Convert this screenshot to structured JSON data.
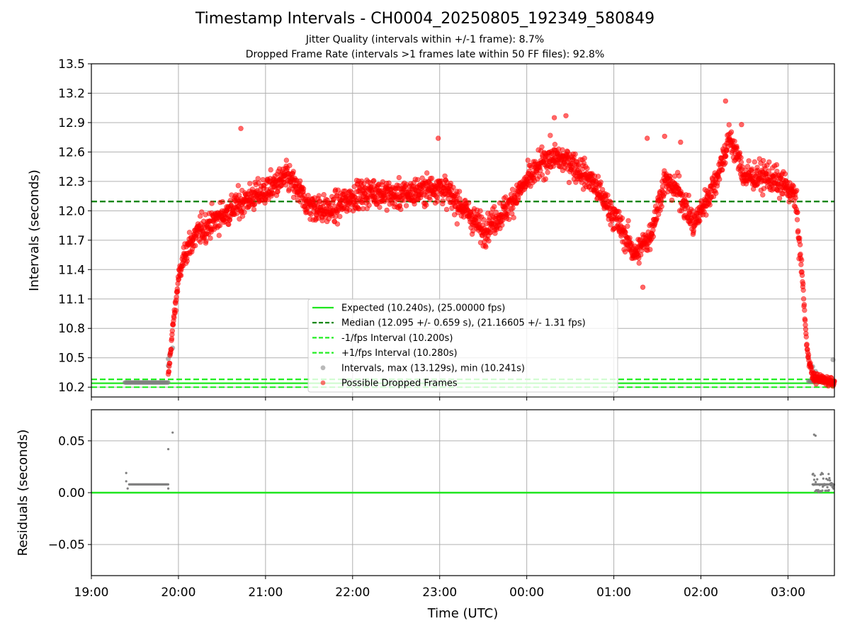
{
  "title": "Timestamp Intervals - CH0004_20250805_192349_580849",
  "subtitle_1": "Jitter Quality (intervals within +/-1 frame): 8.7%",
  "subtitle_2": "Dropped Frame Rate (intervals >1 frames late within 50 FF files): 92.8%",
  "colors": {
    "expected": "#1ee61e",
    "median": "#008000",
    "fps_band": "#22ee22",
    "intervals": "#808080",
    "dropped": "#ff0000"
  },
  "chart_data": [
    {
      "type": "scatter",
      "title": "Timestamp Intervals - CH0004_20250805_192349_580849",
      "xlabel": "",
      "ylabel": "Intervals (seconds)",
      "ylim": [
        10.1,
        13.5
      ],
      "xlim": [
        "19:00",
        "03:32"
      ],
      "x_ticks": [
        "19:00",
        "20:00",
        "21:00",
        "22:00",
        "23:00",
        "00:00",
        "01:00",
        "02:00",
        "03:00"
      ],
      "y_ticks": [
        "10.2",
        "10.5",
        "10.8",
        "11.1",
        "11.4",
        "11.7",
        "12.0",
        "12.3",
        "12.6",
        "12.9",
        "13.2",
        "13.5"
      ],
      "grid": true,
      "legend_position": "lower center",
      "legend": [
        "Expected (10.240s), (25.00000 fps)",
        "Median (12.095 +/- 0.659 s), (21.16605 +/- 1.31 fps)",
        "-1/fps Interval (10.200s)",
        "+1/fps Interval (10.280s)",
        "Intervals, max (13.129s), min (10.241s)",
        "Possible Dropped Frames"
      ],
      "reference_lines": {
        "expected": 10.24,
        "median": 12.095,
        "minus_1_fps": 10.2,
        "plus_1_fps": 10.28
      },
      "intervals_stats": {
        "max": 13.129,
        "min": 10.241
      },
      "series": [
        {
          "name": "Intervals, max (13.129s), min (10.241s)",
          "segments": [
            {
              "x_start": "19:23",
              "x_end": "19:53",
              "y": 10.248
            },
            {
              "x_start": "03:14",
              "x_end": "03:32",
              "y": 10.26
            }
          ],
          "points": [
            {
              "x": "19:53",
              "y": 10.42
            },
            {
              "x": "19:53",
              "y": 10.49
            },
            {
              "x": "19:54",
              "y": 10.53
            },
            {
              "x": "19:56",
              "y": 10.6
            },
            {
              "x": "03:17",
              "y": 10.41
            },
            {
              "x": "03:19",
              "y": 10.36
            },
            {
              "x": "03:31",
              "y": 10.48
            }
          ]
        },
        {
          "name": "Possible Dropped Frames",
          "profile": [
            {
              "x": "19:53",
              "y": 10.3
            },
            {
              "x": "19:56",
              "y": 10.8
            },
            {
              "x": "20:00",
              "y": 11.3
            },
            {
              "x": "20:05",
              "y": 11.6
            },
            {
              "x": "20:15",
              "y": 11.8
            },
            {
              "x": "20:30",
              "y": 11.95
            },
            {
              "x": "20:45",
              "y": 12.1
            },
            {
              "x": "21:00",
              "y": 12.2
            },
            {
              "x": "21:15",
              "y": 12.35
            },
            {
              "x": "21:30",
              "y": 12.05
            },
            {
              "x": "21:45",
              "y": 12.0
            },
            {
              "x": "22:00",
              "y": 12.15
            },
            {
              "x": "22:15",
              "y": 12.2
            },
            {
              "x": "22:30",
              "y": 12.15
            },
            {
              "x": "22:45",
              "y": 12.2
            },
            {
              "x": "23:00",
              "y": 12.25
            },
            {
              "x": "23:15",
              "y": 12.05
            },
            {
              "x": "23:30",
              "y": 11.8
            },
            {
              "x": "23:45",
              "y": 12.0
            },
            {
              "x": "00:00",
              "y": 12.3
            },
            {
              "x": "00:15",
              "y": 12.55
            },
            {
              "x": "00:30",
              "y": 12.5
            },
            {
              "x": "00:45",
              "y": 12.3
            },
            {
              "x": "01:00",
              "y": 11.95
            },
            {
              "x": "01:15",
              "y": 11.55
            },
            {
              "x": "01:25",
              "y": 11.75
            },
            {
              "x": "01:35",
              "y": 12.3
            },
            {
              "x": "01:45",
              "y": 12.2
            },
            {
              "x": "01:55",
              "y": 11.85
            },
            {
              "x": "02:10",
              "y": 12.3
            },
            {
              "x": "02:20",
              "y": 12.75
            },
            {
              "x": "02:30",
              "y": 12.35
            },
            {
              "x": "02:45",
              "y": 12.35
            },
            {
              "x": "02:58",
              "y": 12.25
            },
            {
              "x": "03:05",
              "y": 12.15
            },
            {
              "x": "03:10",
              "y": 11.3
            },
            {
              "x": "03:13",
              "y": 10.6
            },
            {
              "x": "03:17",
              "y": 10.3
            },
            {
              "x": "03:32",
              "y": 10.25
            }
          ],
          "outliers": [
            {
              "x": "20:43",
              "y": 12.84
            },
            {
              "x": "22:59",
              "y": 12.74
            },
            {
              "x": "00:19",
              "y": 12.95
            },
            {
              "x": "00:27",
              "y": 12.97
            },
            {
              "x": "01:20",
              "y": 11.22
            },
            {
              "x": "01:23",
              "y": 12.74
            },
            {
              "x": "01:35",
              "y": 12.76
            },
            {
              "x": "01:46",
              "y": 12.7
            },
            {
              "x": "02:17",
              "y": 13.12
            },
            {
              "x": "02:28",
              "y": 12.88
            }
          ]
        }
      ]
    },
    {
      "type": "scatter",
      "xlabel": "Time (UTC)",
      "ylabel": "Residuals (seconds)",
      "ylim": [
        -0.08,
        0.08
      ],
      "y_ticks": [
        "0.05",
        "0.00",
        "−0.05"
      ],
      "x_ticks": [
        "19:00",
        "20:00",
        "21:00",
        "22:00",
        "23:00",
        "00:00",
        "01:00",
        "02:00",
        "03:00"
      ],
      "grid": true,
      "zero_line": 0.0,
      "series": [
        {
          "name": "",
          "segments": [
            {
              "x_start": "19:26",
              "x_end": "19:53",
              "y": 0.008
            },
            {
              "x_start": "03:17",
              "x_end": "03:32",
              "y": 0.008
            }
          ],
          "points": [
            {
              "x": "19:24",
              "y": 0.019
            },
            {
              "x": "19:24",
              "y": 0.011
            },
            {
              "x": "19:25",
              "y": 0.004
            },
            {
              "x": "19:53",
              "y": 0.004
            },
            {
              "x": "19:53",
              "y": 0.042
            },
            {
              "x": "19:56",
              "y": 0.058
            },
            {
              "x": "03:18",
              "y": 0.056
            },
            {
              "x": "03:19",
              "y": 0.055
            },
            {
              "x": "03:24",
              "y": 0.018
            },
            {
              "x": "03:28",
              "y": 0.018
            }
          ]
        }
      ]
    }
  ]
}
